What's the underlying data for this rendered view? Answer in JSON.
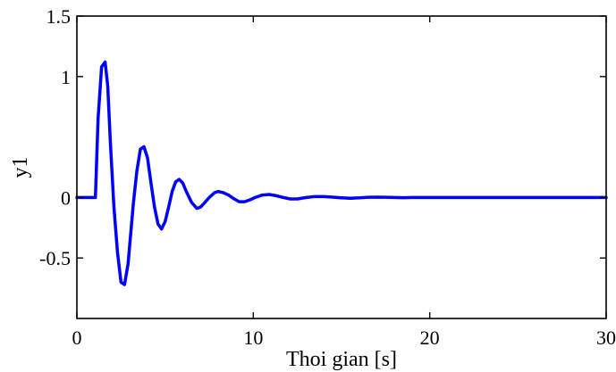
{
  "chart_data": {
    "type": "line",
    "xlabel": "Thoi gian [s]",
    "ylabel": "y1",
    "xlim": [
      0,
      30
    ],
    "ylim": [
      -1.0,
      1.5
    ],
    "xticks": [
      0,
      10,
      20,
      30
    ],
    "xtick_labels": [
      "0",
      "10",
      "20",
      "30"
    ],
    "yticks": [
      -0.5,
      0,
      1,
      1.5
    ],
    "ytick_labels": [
      "-0.5",
      "0",
      "1",
      "1.5"
    ],
    "grid": false,
    "legend": "none",
    "series": [
      {
        "color": "#0000ff",
        "x": [
          0,
          1.0,
          1.05,
          1.2,
          1.4,
          1.6,
          1.75,
          1.9,
          2.1,
          2.3,
          2.5,
          2.7,
          2.9,
          3.05,
          3.2,
          3.4,
          3.6,
          3.8,
          4.0,
          4.2,
          4.4,
          4.6,
          4.8,
          5.0,
          5.2,
          5.4,
          5.6,
          5.8,
          6.0,
          6.2,
          6.5,
          6.8,
          7.0,
          7.2,
          7.5,
          7.8,
          8.0,
          8.3,
          8.6,
          8.9,
          9.2,
          9.5,
          9.8,
          10.1,
          10.5,
          10.9,
          11.3,
          11.7,
          12.1,
          12.5,
          13.0,
          13.5,
          14.0,
          14.5,
          15.0,
          15.5,
          16.0,
          16.5,
          17.0,
          17.5,
          18.0,
          18.5,
          19.0,
          20.0,
          22.0,
          25.0,
          30.0
        ],
        "y": [
          0,
          0,
          0.0,
          0.65,
          1.08,
          1.12,
          0.92,
          0.45,
          -0.08,
          -0.45,
          -0.7,
          -0.72,
          -0.55,
          -0.3,
          -0.05,
          0.22,
          0.4,
          0.42,
          0.33,
          0.12,
          -0.08,
          -0.22,
          -0.26,
          -0.2,
          -0.08,
          0.05,
          0.13,
          0.15,
          0.12,
          0.05,
          -0.04,
          -0.09,
          -0.08,
          -0.05,
          0.0,
          0.04,
          0.05,
          0.04,
          0.02,
          -0.01,
          -0.035,
          -0.035,
          -0.02,
          0.0,
          0.02,
          0.025,
          0.015,
          0.0,
          -0.012,
          -0.012,
          0.0,
          0.008,
          0.008,
          0.003,
          -0.003,
          -0.006,
          -0.003,
          0.002,
          0.003,
          0.002,
          0.0,
          -0.002,
          0.0,
          0.0,
          0.0,
          0.0,
          0.0
        ]
      }
    ]
  }
}
